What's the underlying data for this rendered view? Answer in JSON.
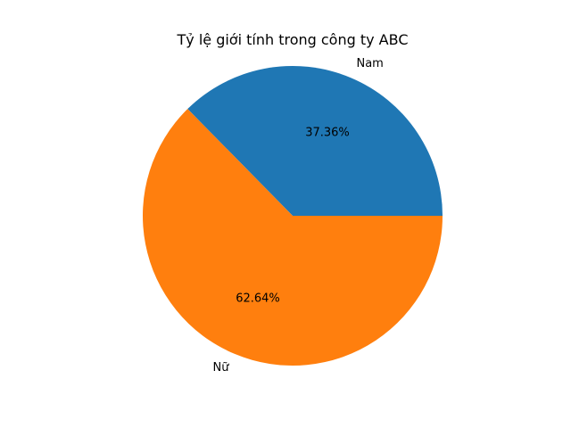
{
  "chart_data": {
    "type": "pie",
    "title": "Tỷ lệ giới tính trong công ty ABC",
    "slices": [
      {
        "label": "Nam",
        "value": 37.36,
        "pct_label": "37.36%",
        "color": "#1f77b4"
      },
      {
        "label": "Nữ",
        "value": 62.64,
        "pct_label": "62.64%",
        "color": "#ff7f0e"
      }
    ],
    "start_angle_deg": 0,
    "direction": "counterclockwise"
  }
}
